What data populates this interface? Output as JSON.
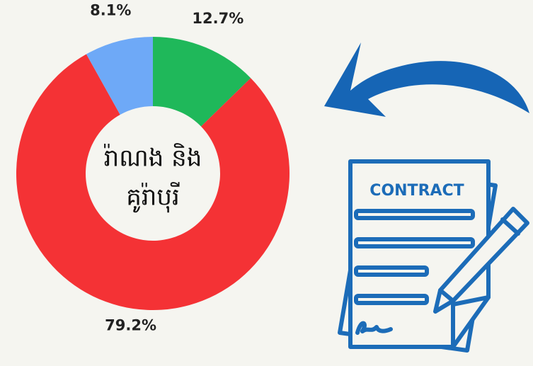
{
  "chart_data": {
    "type": "pie",
    "categories": [
      "12.7%",
      "79.2%",
      "8.1%"
    ],
    "values": [
      12.7,
      79.2,
      8.1
    ],
    "colors": [
      "#1fb85a",
      "#f43235",
      "#6ea9f7"
    ],
    "center_label": [
      "រ៉ាណង និង",
      "គូរ៉ាបុរី"
    ]
  },
  "illustration": {
    "document_title": "CONTRACT"
  }
}
